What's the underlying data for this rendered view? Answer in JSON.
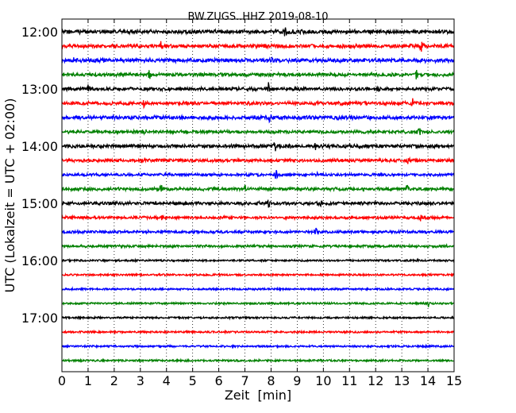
{
  "chart_data": {
    "type": "line",
    "title": "BW.ZUGS..HHZ 2019-08-10",
    "xlabel": "Zeit  [min]",
    "ylabel": "UTC (Lokalzeit = UTC + 02:00)",
    "xlim": [
      0,
      15
    ],
    "x_ticks": [
      0,
      1,
      2,
      3,
      4,
      5,
      6,
      7,
      8,
      9,
      10,
      11,
      12,
      13,
      14,
      15
    ],
    "y_tick_labels": [
      "12:00",
      "13:00",
      "14:00",
      "15:00",
      "16:00",
      "17:00"
    ],
    "trace_count": 24,
    "trace_colors": [
      "#000000",
      "#ff0000",
      "#0000ff",
      "#008000"
    ],
    "grid": "vertical dotted",
    "traces": [
      {
        "activity": 1.0,
        "events": [
          [
            8.55,
            9
          ],
          [
            8.85,
            4
          ]
        ]
      },
      {
        "activity": 0.9,
        "events": [
          [
            3.8,
            8
          ],
          [
            13.75,
            9
          ]
        ]
      },
      {
        "activity": 1.0,
        "events": [
          [
            0.45,
            4
          ],
          [
            8.0,
            6
          ]
        ]
      },
      {
        "activity": 0.8,
        "events": [
          [
            3.35,
            8
          ],
          [
            13.55,
            8
          ]
        ]
      },
      {
        "activity": 0.8,
        "events": [
          [
            1.0,
            6
          ],
          [
            7.9,
            9
          ],
          [
            12.1,
            5
          ]
        ]
      },
      {
        "activity": 0.8,
        "events": [
          [
            3.15,
            7
          ],
          [
            13.4,
            9
          ]
        ]
      },
      {
        "activity": 0.9,
        "events": [
          [
            7.95,
            8
          ],
          [
            10.55,
            4
          ]
        ]
      },
      {
        "activity": 0.7,
        "events": [
          [
            3.15,
            8
          ],
          [
            13.65,
            8
          ]
        ]
      },
      {
        "activity": 0.9,
        "events": [
          [
            8.15,
            9
          ],
          [
            9.7,
            5
          ]
        ]
      },
      {
        "activity": 0.7,
        "events": [
          [
            3.1,
            7
          ],
          [
            13.25,
            8
          ]
        ]
      },
      {
        "activity": 0.6,
        "events": [
          [
            8.2,
            8
          ],
          [
            9.75,
            4
          ]
        ]
      },
      {
        "activity": 0.7,
        "events": [
          [
            3.8,
            8
          ],
          [
            7.0,
            6
          ],
          [
            13.2,
            7
          ]
        ]
      },
      {
        "activity": 0.8,
        "events": [
          [
            7.9,
            9
          ],
          [
            9.9,
            4
          ]
        ]
      },
      {
        "activity": 0.6,
        "events": [
          [
            3.8,
            8
          ],
          [
            13.7,
            8
          ]
        ]
      },
      {
        "activity": 0.6,
        "events": [
          [
            9.7,
            7
          ]
        ]
      },
      {
        "activity": 0.5,
        "events": []
      },
      {
        "activity": 0.3,
        "events": []
      },
      {
        "activity": 0.3,
        "events": []
      },
      {
        "activity": 0.3,
        "events": []
      },
      {
        "activity": 0.3,
        "events": [
          [
            14.0,
            6
          ]
        ]
      },
      {
        "activity": 0.3,
        "events": []
      },
      {
        "activity": 0.3,
        "events": []
      },
      {
        "activity": 0.3,
        "events": []
      },
      {
        "activity": 0.3,
        "events": []
      }
    ]
  }
}
